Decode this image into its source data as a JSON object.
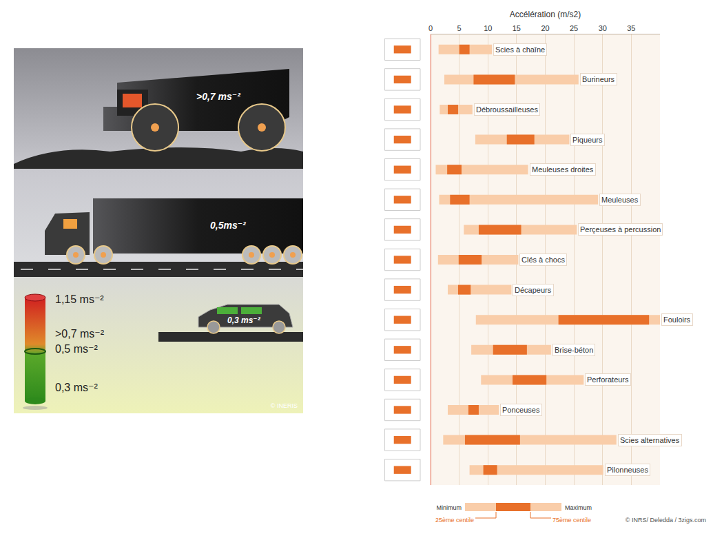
{
  "illustration": {
    "vehicles": [
      {
        "label": ">0,7 ms⁻²"
      },
      {
        "label": "0,5ms⁻²"
      },
      {
        "label": "0,3 ms⁻²"
      }
    ],
    "gauge": [
      "1,15 ms⁻²",
      ">0,7 ms⁻²",
      "0,5 ms⁻²",
      "0,3 ms⁻²"
    ],
    "credit": "© INERIS"
  },
  "chart_data": {
    "type": "range",
    "title": "Accélération (m/s2)",
    "orientation": "horizontal",
    "categories": [
      "Scies à chaîne",
      "Burineurs",
      "Débroussailleuses",
      "Piqueurs",
      "Meuleuses droites",
      "Meuleuses",
      "Perçeuses à percussion",
      "Clés à chocs",
      "Décapeurs",
      "Fouloirs",
      "Brise-béton",
      "Perforateurs",
      "Ponceuses",
      "Scies alternatives",
      "Pilonneuses"
    ],
    "series": [
      {
        "name": "Minimum",
        "color": "#f9cda9",
        "values": [
          1.4,
          2.4,
          1.6,
          7.8,
          0.9,
          1.5,
          5.8,
          1.3,
          3.0,
          7.9,
          7.1,
          8.8,
          3.0,
          2.2,
          6.8
        ]
      },
      {
        "name": "25ème centile",
        "color": "#e8702a",
        "values": [
          5.0,
          7.5,
          3.0,
          13.3,
          2.9,
          3.4,
          8.4,
          4.9,
          4.8,
          22.3,
          10.9,
          14.3,
          6.6,
          6.0,
          9.2
        ]
      },
      {
        "name": "75ème centile",
        "color": "#e8702a",
        "values": [
          6.8,
          14.7,
          4.8,
          18.1,
          5.4,
          6.8,
          15.8,
          8.9,
          7.0,
          38.1,
          16.8,
          20.2,
          8.4,
          15.6,
          11.6
        ]
      },
      {
        "name": "Maximum",
        "color": "#f9cda9",
        "values": [
          10.7,
          25.8,
          7.3,
          24.2,
          17.0,
          29.2,
          25.5,
          15.3,
          14.1,
          40.0,
          21.0,
          26.7,
          11.9,
          32.4,
          30.1
        ]
      }
    ],
    "xlim": [
      0,
      40
    ],
    "xticks": [
      0,
      5,
      10,
      15,
      20,
      25,
      30,
      35
    ],
    "grid": true,
    "tick_labels": "x",
    "legend": "bottom",
    "annotations": [
      "© INRS/ Deledda / 3zigs.com"
    ]
  }
}
